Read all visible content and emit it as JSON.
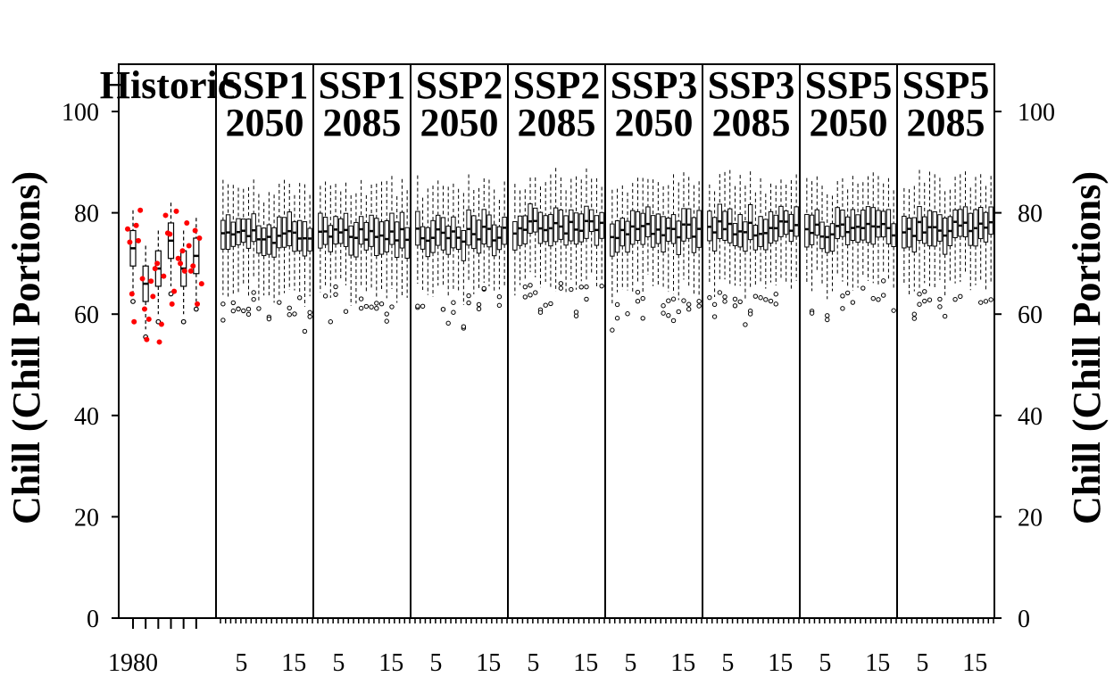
{
  "chart_data": {
    "type": "box",
    "ylabel_left": "Chill (Chill Portions)",
    "ylabel_right": "Chill (Chill Portions)",
    "ylim": [
      0,
      100
    ],
    "yticks": [
      0,
      20,
      40,
      60,
      80,
      100
    ],
    "grid": false,
    "legend": "none",
    "colors": {
      "observed": "#ff0000",
      "box": "#000000"
    },
    "panels": [
      {
        "title_lines": [
          "Historic"
        ],
        "x_tick_labels": [
          "1980",
          "",
          "",
          "",
          "",
          ""
        ],
        "box_medians": [
          73.0,
          66.0,
          69.0,
          74.5,
          69.0,
          71.5
        ],
        "observed": [
          [
            76.8,
            74.2,
            64.0,
            58.5,
            77.5,
            74.5
          ],
          [
            80.5,
            67.0,
            61.0,
            55.0,
            59.0,
            66.5
          ],
          [
            63.5,
            69.0,
            70.0,
            54.5,
            58.0,
            67.5
          ],
          [
            79.5,
            76.0,
            75.8,
            62.0,
            64.5,
            80.3
          ],
          [
            71.0,
            70.0,
            72.5,
            68.5,
            78.0,
            73.5
          ],
          [
            68.5,
            69.5,
            76.5,
            62.0,
            75.0,
            66.0
          ]
        ]
      },
      {
        "title_lines": [
          "SSP1",
          "2050"
        ],
        "x_tick_labels": [
          "5",
          "15"
        ],
        "n_boxes": 18,
        "median_mean": 75.5
      },
      {
        "title_lines": [
          "SSP1",
          "2085"
        ],
        "x_tick_labels": [
          "5",
          "15"
        ],
        "n_boxes": 18,
        "median_mean": 75.8
      },
      {
        "title_lines": [
          "SSP2",
          "2050"
        ],
        "x_tick_labels": [
          "5",
          "15"
        ],
        "n_boxes": 18,
        "median_mean": 75.8
      },
      {
        "title_lines": [
          "SSP2",
          "2085"
        ],
        "x_tick_labels": [
          "5",
          "15"
        ],
        "n_boxes": 18,
        "median_mean": 77.0
      },
      {
        "title_lines": [
          "SSP3",
          "2050"
        ],
        "x_tick_labels": [
          "5",
          "15"
        ],
        "n_boxes": 18,
        "median_mean": 76.3
      },
      {
        "title_lines": [
          "SSP3",
          "2085"
        ],
        "x_tick_labels": [
          "5",
          "15"
        ],
        "n_boxes": 18,
        "median_mean": 77.0
      },
      {
        "title_lines": [
          "SSP5",
          "2050"
        ],
        "x_tick_labels": [
          "5",
          "15"
        ],
        "n_boxes": 18,
        "median_mean": 76.5
      },
      {
        "title_lines": [
          "SSP5",
          "2085"
        ],
        "x_tick_labels": [
          "5",
          "15"
        ],
        "n_boxes": 18,
        "median_mean": 76.8
      }
    ]
  }
}
